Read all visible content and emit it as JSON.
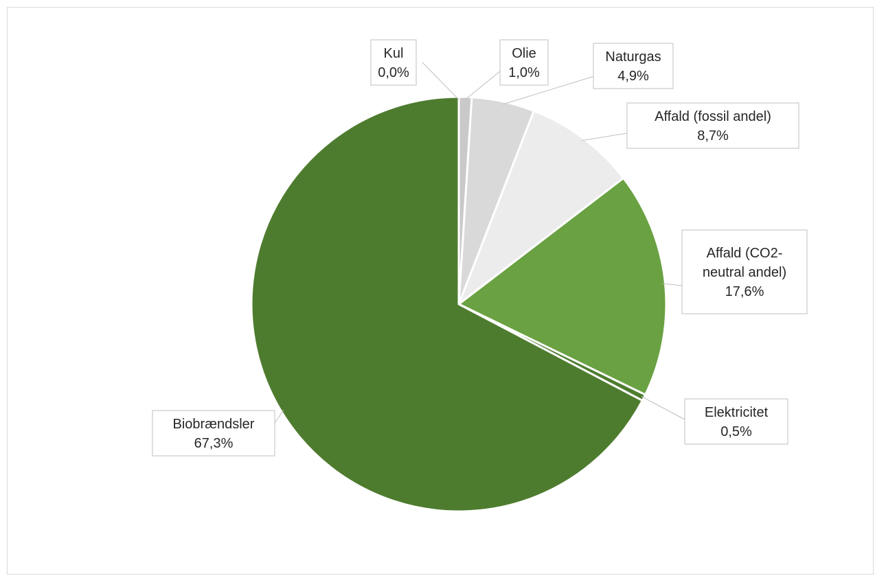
{
  "chart_data": {
    "type": "pie",
    "title": "",
    "start_angle_deg": 0,
    "direction": "clockwise",
    "slices": [
      {
        "name": "Kul",
        "value": 0.0,
        "label": "0,0%",
        "color": "#bfbfbf"
      },
      {
        "name": "Olie",
        "value": 1.0,
        "label": "1,0%",
        "color": "#c9c9c9"
      },
      {
        "name": "Naturgas",
        "value": 4.9,
        "label": "4,9%",
        "color": "#d9d9d9"
      },
      {
        "name": "Affald (fossil andel)",
        "value": 8.7,
        "label": "8,7%",
        "color": "#ececec"
      },
      {
        "name": "Affald (CO2-neutral andel)",
        "value": 17.6,
        "label": "17,6%",
        "color": "#6aa142"
      },
      {
        "name": "Elektricitet",
        "value": 0.5,
        "label": "0,5%",
        "color": "#4e7c2f"
      },
      {
        "name": "Biobrændsler",
        "value": 67.3,
        "label": "67,3%",
        "color": "#4e7c2f"
      }
    ],
    "legend": "none",
    "data_labels": "callouts"
  }
}
